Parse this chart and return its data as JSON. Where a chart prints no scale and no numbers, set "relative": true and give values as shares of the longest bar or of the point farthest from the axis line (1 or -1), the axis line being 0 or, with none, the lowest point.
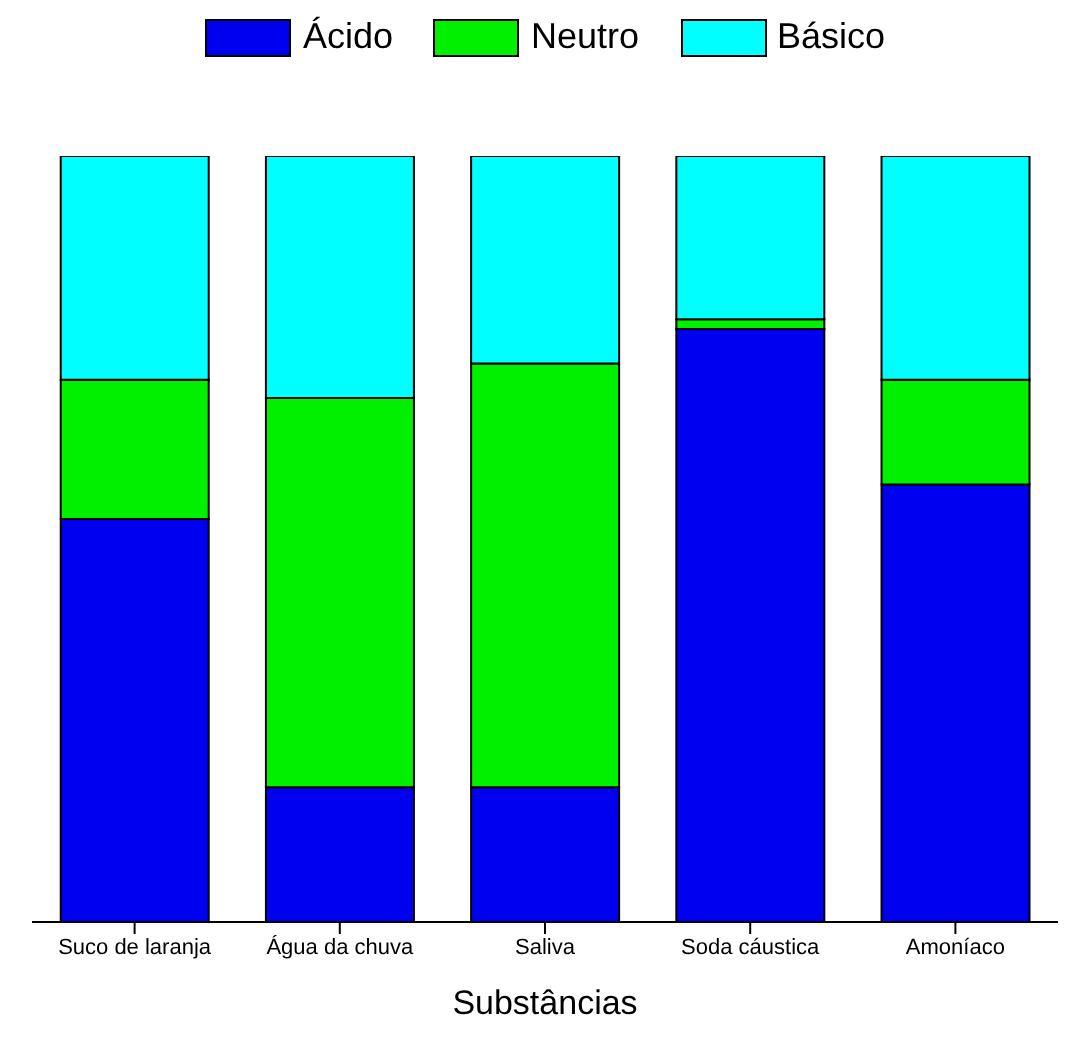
{
  "chart_data": {
    "type": "bar",
    "xlabel": "Substâncias",
    "categories": [
      "Suco de laranja",
      "Água da chuva",
      "Saliva",
      "Soda cáustica",
      "Amoníaco"
    ],
    "stacked": true,
    "relative": true,
    "legend": "top",
    "series": [
      {
        "name": "Ácido",
        "color": "#0000f0",
        "values": [
          0.526,
          0.176,
          0.176,
          0.774,
          0.571
        ]
      },
      {
        "name": "Neutro",
        "color": "#00f000",
        "values": [
          0.182,
          0.508,
          0.553,
          0.013,
          0.137
        ]
      },
      {
        "name": "Básico",
        "color": "#00ffff",
        "values": [
          0.292,
          0.316,
          0.271,
          0.213,
          0.292
        ]
      }
    ]
  }
}
